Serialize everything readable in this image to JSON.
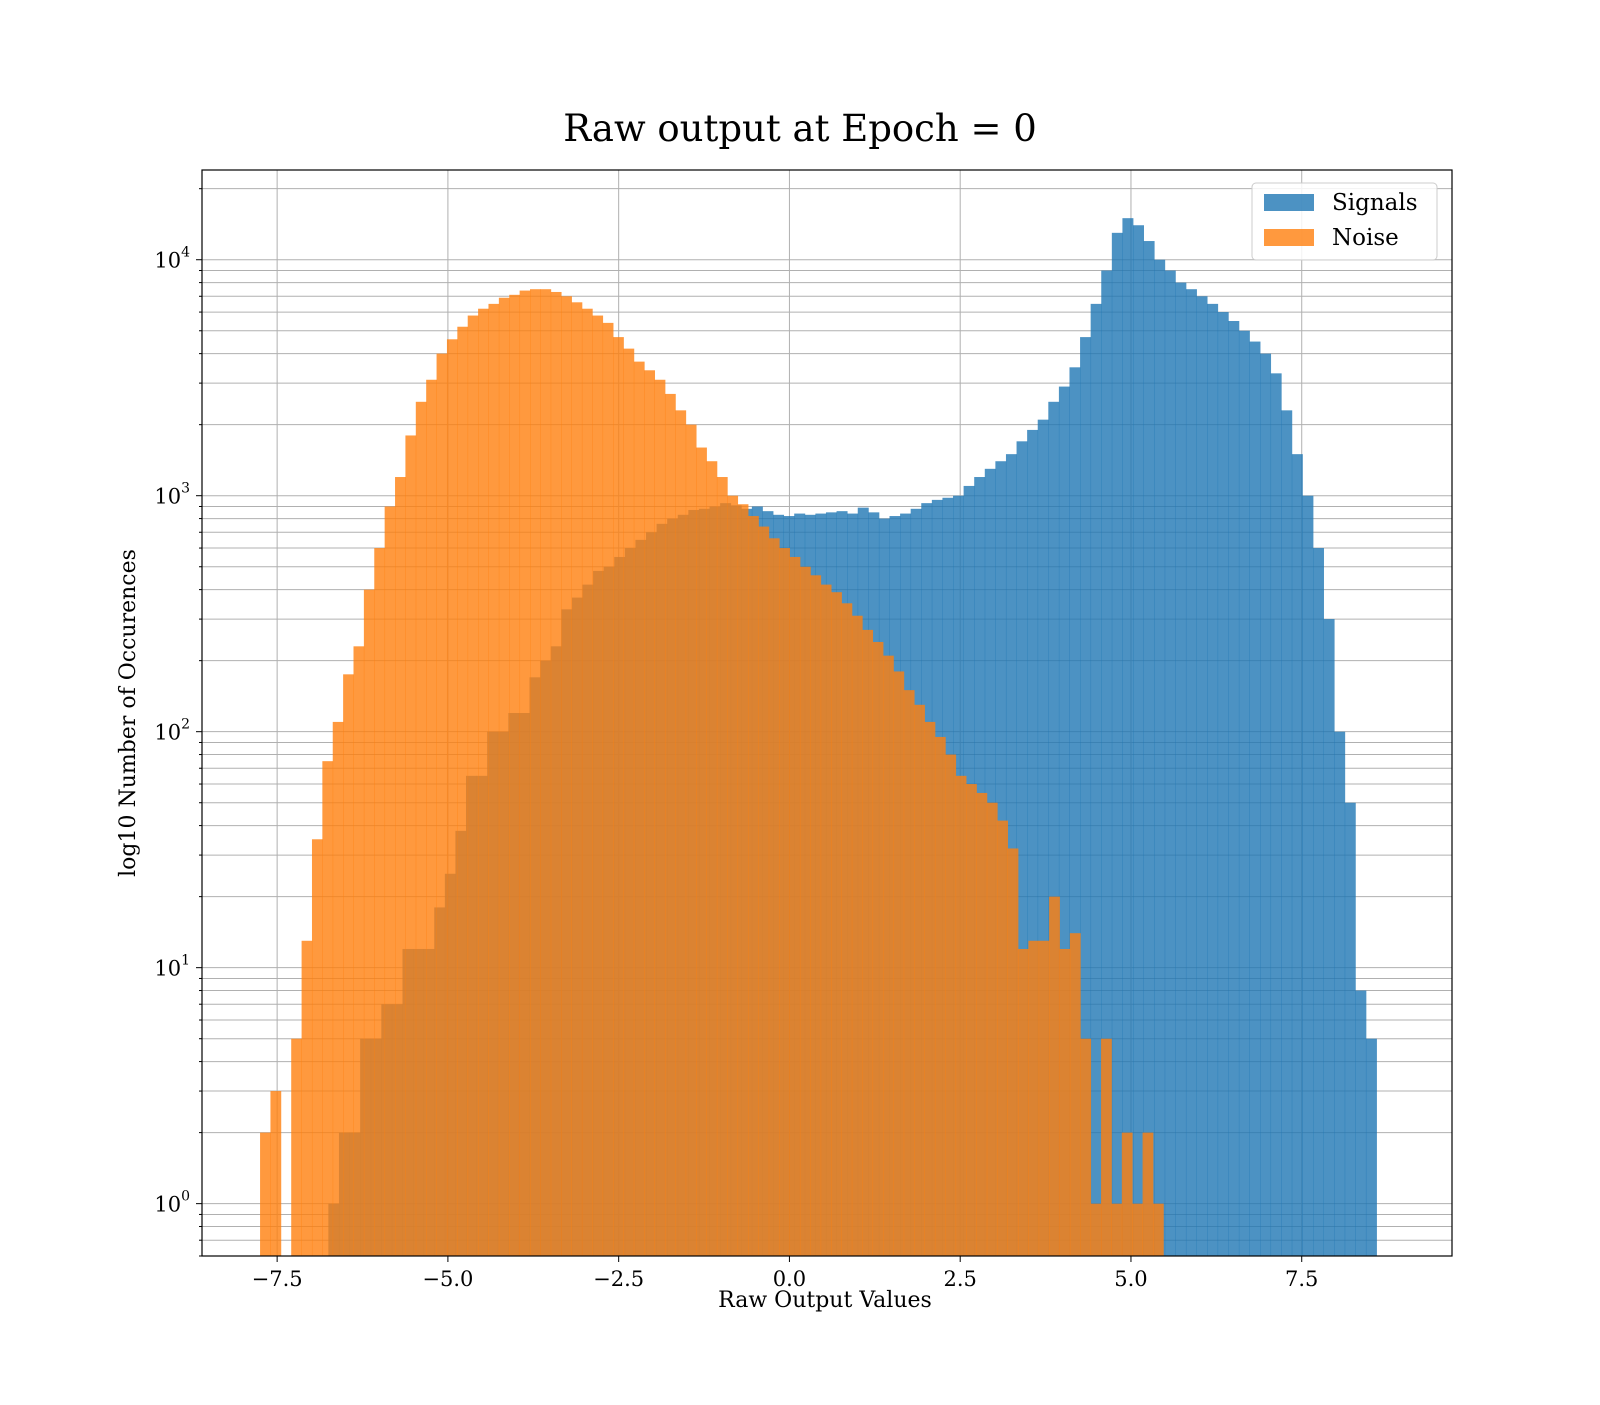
{
  "chart_data": {
    "type": "histogram",
    "title": "Raw output at Epoch = 0",
    "xlabel": "Raw Output Values",
    "ylabel": "log10 Number of Occurences",
    "xlim": [
      -8.6,
      9.7
    ],
    "ylim": [
      0.6,
      24000
    ],
    "yscale": "log",
    "grid": true,
    "legend_position": "upper right",
    "x_ticks": [
      -7.5,
      -5.0,
      -2.5,
      0.0,
      2.5,
      5.0,
      7.5
    ],
    "x_tick_labels": [
      "−7.5",
      "−5.0",
      "−2.5",
      "0.0",
      "2.5",
      "5.0",
      "7.5"
    ],
    "y_ticks": [
      {
        "value": 1,
        "base": "10",
        "exp": "0"
      },
      {
        "value": 10,
        "base": "10",
        "exp": "1"
      },
      {
        "value": 100,
        "base": "10",
        "exp": "2"
      },
      {
        "value": 1000,
        "base": "10",
        "exp": "3"
      },
      {
        "value": 10000,
        "base": "10",
        "exp": "4"
      }
    ],
    "series": [
      {
        "name": "Signals",
        "color": "#1f77b4",
        "opacity": 0.8,
        "bin_start": -6.75,
        "bin_width": 0.155,
        "counts": [
          1,
          2,
          2,
          5,
          5,
          7,
          7,
          12,
          12,
          12,
          18,
          25,
          38,
          65,
          65,
          100,
          100,
          120,
          120,
          170,
          200,
          230,
          330,
          370,
          420,
          480,
          500,
          550,
          600,
          650,
          700,
          760,
          800,
          830,
          870,
          880,
          900,
          930,
          910,
          880,
          900,
          860,
          830,
          820,
          840,
          830,
          840,
          850,
          860,
          840,
          890,
          850,
          800,
          820,
          840,
          880,
          930,
          960,
          980,
          1000,
          1100,
          1200,
          1300,
          1400,
          1500,
          1700,
          1900,
          2100,
          2500,
          2900,
          3500,
          4700,
          6500,
          9000,
          13000,
          15000,
          14000,
          12000,
          10000,
          9000,
          8000,
          7500,
          7000,
          6500,
          6000,
          5500,
          5000,
          4500,
          4000,
          3300,
          2300,
          1500,
          1000,
          600,
          300,
          100,
          50,
          8,
          5
        ]
      },
      {
        "name": "Noise",
        "color": "#ff7f0e",
        "opacity": 0.8,
        "bin_start": -7.75,
        "bin_width": 0.152,
        "counts": [
          2,
          3,
          0,
          5,
          13,
          35,
          75,
          110,
          175,
          230,
          400,
          600,
          900,
          1200,
          1800,
          2500,
          3100,
          4000,
          4600,
          5200,
          5800,
          6200,
          6500,
          6900,
          7100,
          7400,
          7500,
          7500,
          7300,
          7000,
          6600,
          6200,
          5800,
          5400,
          4700,
          4200,
          3700,
          3400,
          3100,
          2700,
          2300,
          2000,
          1600,
          1400,
          1200,
          1000,
          920,
          820,
          740,
          660,
          600,
          550,
          500,
          460,
          420,
          390,
          350,
          310,
          270,
          240,
          210,
          180,
          150,
          130,
          110,
          95,
          80,
          65,
          60,
          55,
          50,
          42,
          32,
          12,
          13,
          13,
          20,
          12,
          14,
          5,
          1,
          5,
          1,
          2,
          1,
          2,
          1
        ]
      }
    ]
  }
}
